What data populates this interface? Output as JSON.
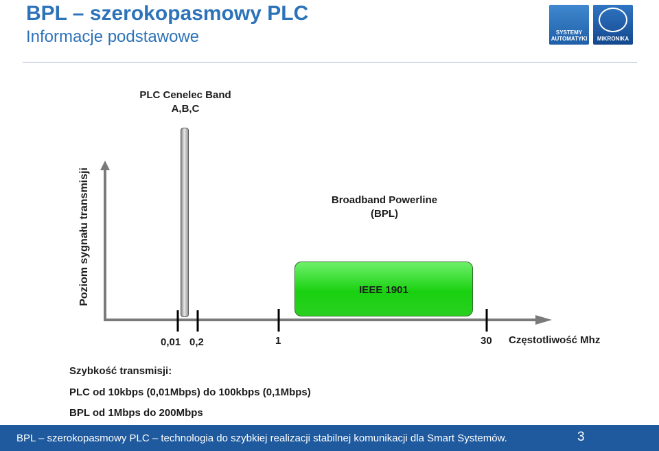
{
  "header": {
    "title": "BPL – szerokopasmowy PLC",
    "subtitle": "Informacje podstawowe"
  },
  "logos": {
    "left_text_line1": "SYSTEMY",
    "left_text_line2": "AUTOMATYKI",
    "right_text": "MIKRONIKA"
  },
  "diagram": {
    "cenelec_label_line1": "PLC Cenelec Band",
    "cenelec_label_line2": "A,B,C",
    "bpl_label_line1": "Broadband Powerline",
    "bpl_label_line2": "(BPL)",
    "bpl_box_label": "IEEE 1901",
    "y_axis_label": "Poziom sygnału transmisji",
    "x_axis_label": "Częstotliwość Mhz",
    "ticks": [
      "0,01",
      "0,2",
      "1",
      "30"
    ],
    "colors": {
      "bpl_box": "#19d110",
      "axis": "#7a7a7a"
    }
  },
  "content": {
    "speed_heading": "Szybkość transmisji:",
    "plc_speed": "PLC od 10kbps (0,01Mbps) do 100kbps (0,1Mbps)",
    "bpl_speed": "BPL od 1Mbps do 200Mbps"
  },
  "footer": {
    "text": "BPL – szerokopasmowy PLC – technologia do szybkiej realizacji stabilnej komunikacji dla Smart Systemów.",
    "page_number": "3"
  }
}
